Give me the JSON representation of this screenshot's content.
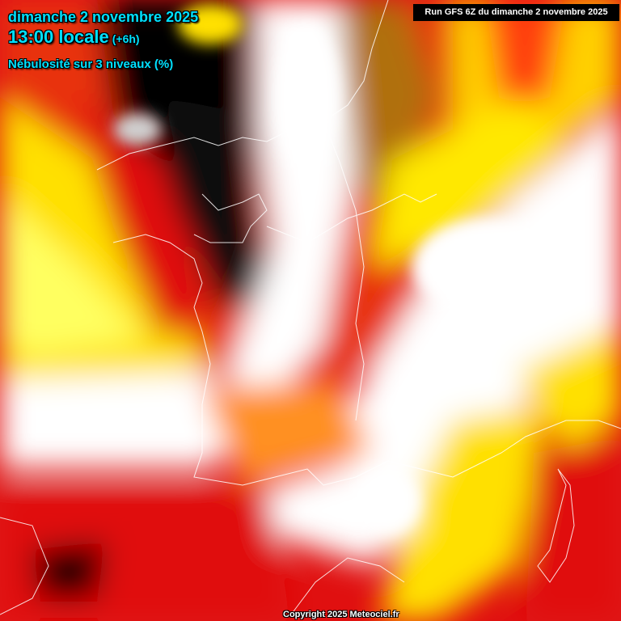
{
  "header": {
    "date": "dimanche 2 novembre 2025",
    "time": "13:00 locale",
    "offset": "(+6h)",
    "parameter": "Nébulosité sur 3 niveaux (%)"
  },
  "run_label": "Run GFS 6Z du dimanche 2 novembre 2025",
  "copyright": "Copyright 2025 Meteociel.fr",
  "colors": {
    "title": "#00e0ff",
    "clear": "#000000",
    "low": "#e01010",
    "mid": "#ffe000",
    "overcast": "#ffffff"
  }
}
